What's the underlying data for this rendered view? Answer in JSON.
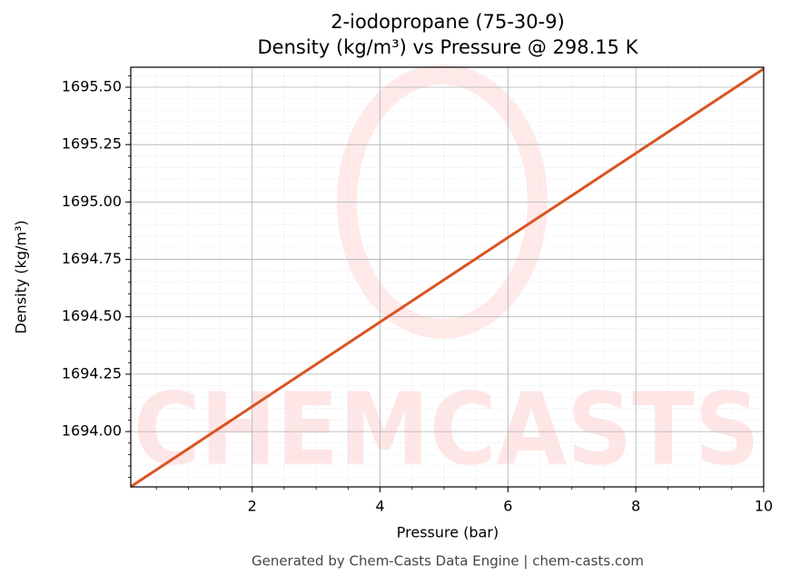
{
  "chart_data": {
    "type": "line",
    "title": [
      "2-iodopropane (75-30-9)",
      "Density (kg/m³) vs Pressure @ 298.15 K"
    ],
    "x_label": "Pressure (bar)",
    "y_label": "Density (kg/m³)",
    "footer": "Generated by Chem-Casts Data Engine | chem-casts.com",
    "watermark": "CHEMCASTS",
    "x": [
      0.1,
      1,
      2,
      3,
      4,
      5,
      6,
      7,
      8,
      9,
      10
    ],
    "series": [
      {
        "name": "Density",
        "color": "#d95422",
        "values": [
          1693.76,
          1693.925,
          1694.109,
          1694.293,
          1694.477,
          1694.661,
          1694.845,
          1695.028,
          1695.212,
          1695.396,
          1695.58
        ]
      }
    ],
    "xlim": [
      0.1,
      10
    ],
    "ylim": [
      1693.759,
      1695.587
    ],
    "xticks": [
      2,
      4,
      6,
      8,
      10
    ],
    "yticks": [
      {
        "value": 1694,
        "label": "1694.00"
      },
      {
        "value": 1694.25,
        "label": "1694.25"
      },
      {
        "value": 1694.5,
        "label": "1694.50"
      },
      {
        "value": 1694.75,
        "label": "1694.75"
      },
      {
        "value": 1695,
        "label": "1695.00"
      },
      {
        "value": 1695.25,
        "label": "1695.25"
      },
      {
        "value": 1695.5,
        "label": "1695.50"
      }
    ],
    "grid": true,
    "minor_grid": true
  }
}
